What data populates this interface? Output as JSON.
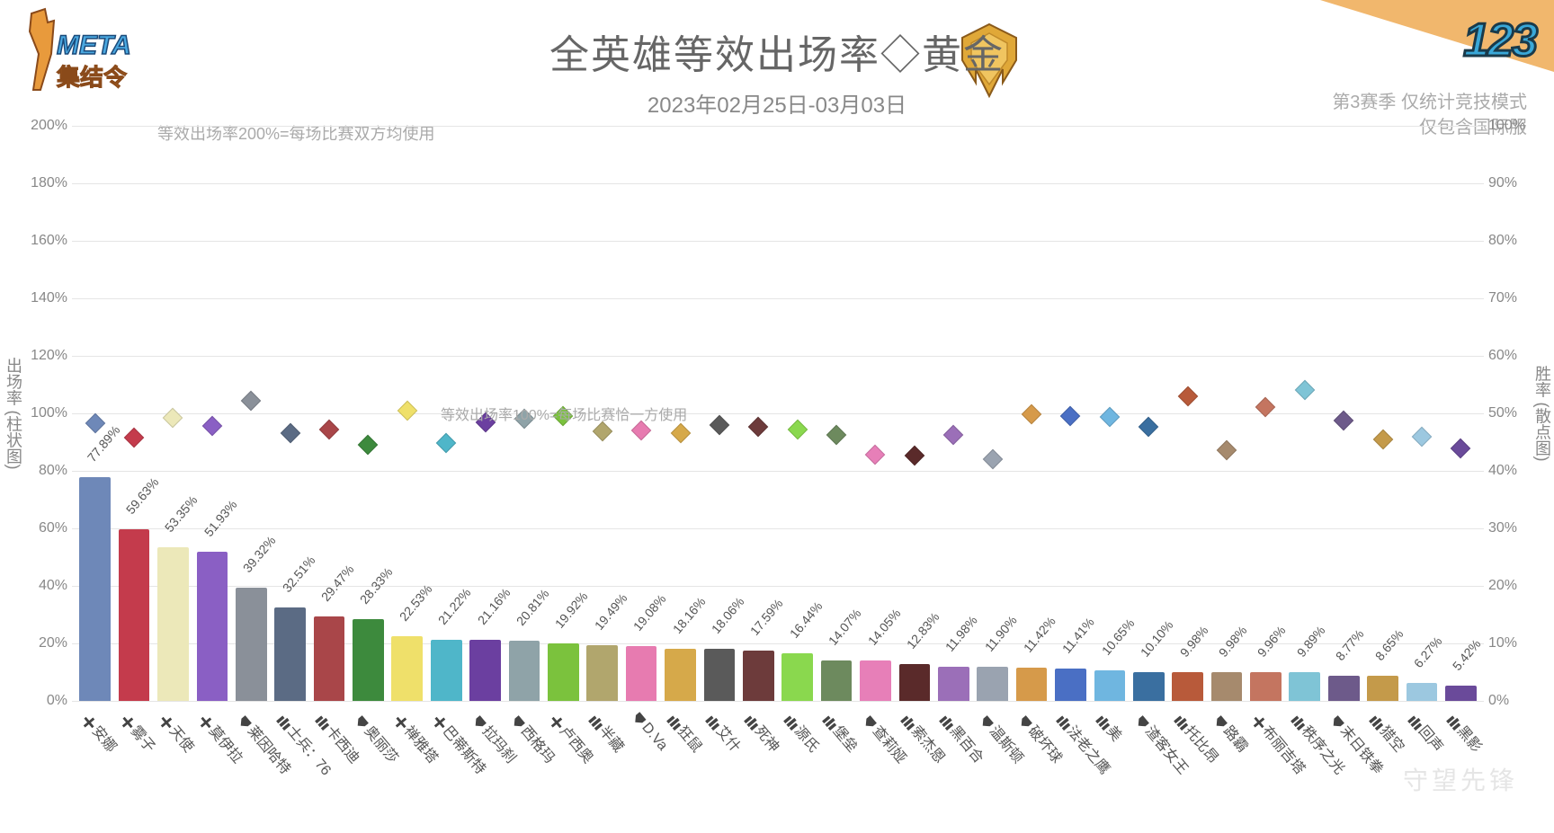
{
  "title": "全英雄等效出场率◇黄金",
  "subtitle": "2023年02月25日-03月03日",
  "corner_number": "123",
  "side_note_line1": "第3赛季 仅统计竞技模式",
  "side_note_line2": "仅包含国际服",
  "note200": "等效出场率200%=每场比赛双方均使用",
  "note100": "等效出场率100%=每场比赛恰一方使用",
  "watermark": "守望先锋",
  "left_axis": {
    "title": "出场率 (柱状图)",
    "min": 0,
    "max": 200,
    "step": 20,
    "unit": "%"
  },
  "right_axis": {
    "title": "胜率 (散点图)",
    "min": 0,
    "max": 100,
    "step": 10,
    "unit": "%"
  },
  "colors": {
    "grid": "#e5e5e5",
    "title_text": "#666666",
    "axis_text": "#888888"
  },
  "heroes": [
    {
      "name": "安娜",
      "role": "support",
      "pick": 77.89,
      "win": 48.3,
      "color": "#6e88b8"
    },
    {
      "name": "雾子",
      "role": "support",
      "pick": 59.63,
      "win": 45.8,
      "color": "#c43b4c"
    },
    {
      "name": "天使",
      "role": "support",
      "pick": 53.35,
      "win": 49.2,
      "color": "#ece8b9"
    },
    {
      "name": "莫伊拉",
      "role": "support",
      "pick": 51.93,
      "win": 47.8,
      "color": "#8a5fc4"
    },
    {
      "name": "莱因哈特",
      "role": "tank",
      "pick": 39.32,
      "win": 52.2,
      "color": "#8a9099"
    },
    {
      "name": "士兵：76",
      "role": "damage",
      "pick": 32.51,
      "win": 46.6,
      "color": "#5b6b84"
    },
    {
      "name": "卡西迪",
      "role": "damage",
      "pick": 29.47,
      "win": 47.2,
      "color": "#a94649"
    },
    {
      "name": "奥丽莎",
      "role": "tank",
      "pick": 28.33,
      "win": 44.6,
      "color": "#3d8a3d"
    },
    {
      "name": "禅雅塔",
      "role": "support",
      "pick": 22.53,
      "win": 50.4,
      "color": "#efe06a"
    },
    {
      "name": "巴蒂斯特",
      "role": "support",
      "pick": 21.22,
      "win": 44.9,
      "color": "#4fb6c9"
    },
    {
      "name": "拉玛刹",
      "role": "tank",
      "pick": 21.16,
      "win": 48.5,
      "color": "#6b3fa0"
    },
    {
      "name": "西格玛",
      "role": "tank",
      "pick": 20.81,
      "win": 49.0,
      "color": "#8fa3a8"
    },
    {
      "name": "卢西奥",
      "role": "support",
      "pick": 19.92,
      "win": 49.6,
      "color": "#7bc23d"
    },
    {
      "name": "半藏",
      "role": "damage",
      "pick": 19.49,
      "win": 46.8,
      "color": "#b1a66d"
    },
    {
      "name": "D.Va",
      "role": "tank",
      "pick": 19.08,
      "win": 47.0,
      "color": "#e77bb0"
    },
    {
      "name": "狂鼠",
      "role": "damage",
      "pick": 18.16,
      "win": 46.5,
      "color": "#d6a94a"
    },
    {
      "name": "艾什",
      "role": "damage",
      "pick": 18.06,
      "win": 47.9,
      "color": "#5a5a5a"
    },
    {
      "name": "死神",
      "role": "damage",
      "pick": 17.59,
      "win": 47.7,
      "color": "#6d3b3b"
    },
    {
      "name": "源氏",
      "role": "damage",
      "pick": 16.44,
      "win": 47.2,
      "color": "#8ad84e"
    },
    {
      "name": "堡垒",
      "role": "damage",
      "pick": 14.07,
      "win": 46.3,
      "color": "#6d8a5e"
    },
    {
      "name": "查莉娅",
      "role": "tank",
      "pick": 14.05,
      "win": 42.8,
      "color": "#e77fb8"
    },
    {
      "name": "索杰恩",
      "role": "damage",
      "pick": 12.83,
      "win": 42.7,
      "color": "#5a2a2a"
    },
    {
      "name": "黑百合",
      "role": "damage",
      "pick": 11.98,
      "win": 46.2,
      "color": "#9b6fb8"
    },
    {
      "name": "温斯顿",
      "role": "tank",
      "pick": 11.9,
      "win": 42.1,
      "color": "#9aa3b0"
    },
    {
      "name": "破坏球",
      "role": "tank",
      "pick": 11.42,
      "win": 49.8,
      "color": "#d69a4a"
    },
    {
      "name": "法老之鹰",
      "role": "damage",
      "pick": 11.41,
      "win": 49.6,
      "color": "#4a6fc4"
    },
    {
      "name": "美",
      "role": "damage",
      "pick": 10.65,
      "win": 49.3,
      "color": "#6fb6e0"
    },
    {
      "name": "渣客女王",
      "role": "tank",
      "pick": 10.1,
      "win": 47.7,
      "color": "#3a6fa0"
    },
    {
      "name": "托比昂",
      "role": "damage",
      "pick": 9.98,
      "win": 53.0,
      "color": "#b85a3a"
    },
    {
      "name": "路霸",
      "role": "tank",
      "pick": 9.98,
      "win": 43.6,
      "color": "#a68a6d"
    },
    {
      "name": "布丽吉塔",
      "role": "support",
      "pick": 9.96,
      "win": 51.1,
      "color": "#c47560"
    },
    {
      "name": "秩序之光",
      "role": "damage",
      "pick": 9.89,
      "win": 54.0,
      "color": "#7fc4d6"
    },
    {
      "name": "末日铁拳",
      "role": "tank",
      "pick": 8.77,
      "win": 48.7,
      "color": "#6d5a8a"
    },
    {
      "name": "猎空",
      "role": "damage",
      "pick": 8.65,
      "win": 45.4,
      "color": "#c49a4a"
    },
    {
      "name": "回声",
      "role": "damage",
      "pick": 6.27,
      "win": 45.9,
      "color": "#9cc8e0"
    },
    {
      "name": "黑影",
      "role": "damage",
      "pick": 5.42,
      "win": 43.9,
      "color": "#6a4a9a"
    }
  ],
  "role_icons": {
    "support": "✚",
    "tank": "🛡",
    "damage": "�усі"
  }
}
